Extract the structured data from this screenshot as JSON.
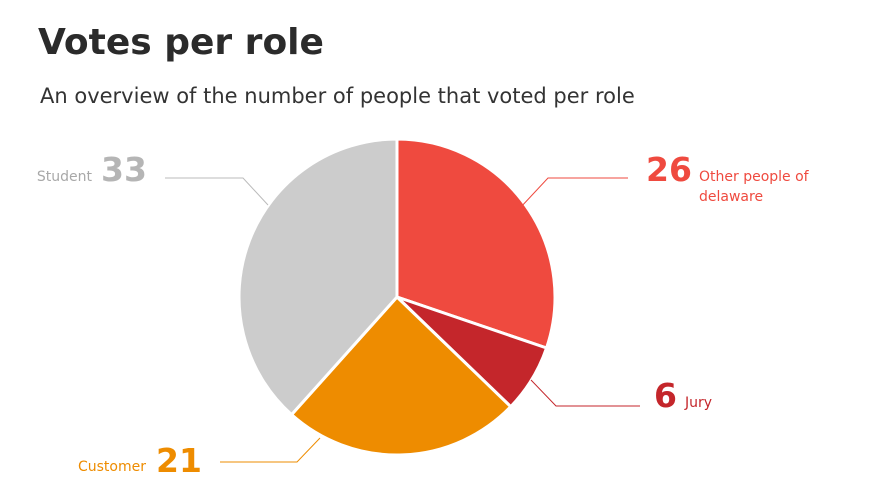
{
  "chart_data": {
    "type": "pie",
    "title": "Votes per role",
    "subtitle": "An overview of the number of people that voted per role",
    "series": [
      {
        "name": "Other people of delaware",
        "color": "#ef4a3f",
        "value": 26
      },
      {
        "name": "Jury",
        "color": "#c4262b",
        "value": 6
      },
      {
        "name": "Customer",
        "color": "#ee8c00",
        "value": 21
      },
      {
        "name": "Student",
        "color": "#cccccc",
        "value": 33
      }
    ]
  }
}
